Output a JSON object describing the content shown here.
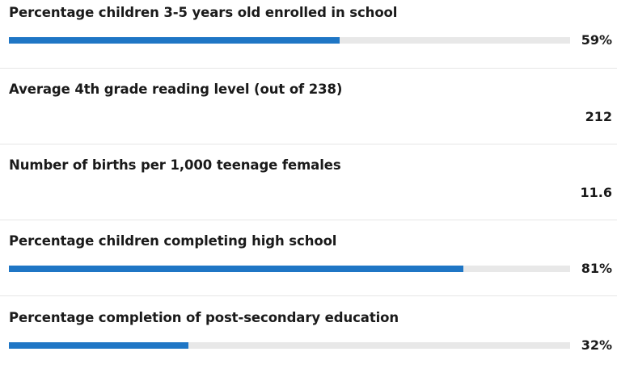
{
  "chart_data": {
    "type": "bar",
    "accent_color": "#1f76c5",
    "track_color": "#e8e8e8",
    "metrics": [
      {
        "title": "Percentage children 3-5 years old enrolled in school",
        "value": 59,
        "display": "59%",
        "has_bar": true
      },
      {
        "title": "Average 4th grade reading level (out of 238)",
        "value": 212,
        "display": "212",
        "has_bar": false
      },
      {
        "title": "Number of births per 1,000 teenage females",
        "value": 11.6,
        "display": "11.6",
        "has_bar": false
      },
      {
        "title": "Percentage children completing high school",
        "value": 81,
        "display": "81%",
        "has_bar": true
      },
      {
        "title": "Percentage completion of post-secondary education",
        "value": 32,
        "display": "32%",
        "has_bar": true
      }
    ]
  }
}
